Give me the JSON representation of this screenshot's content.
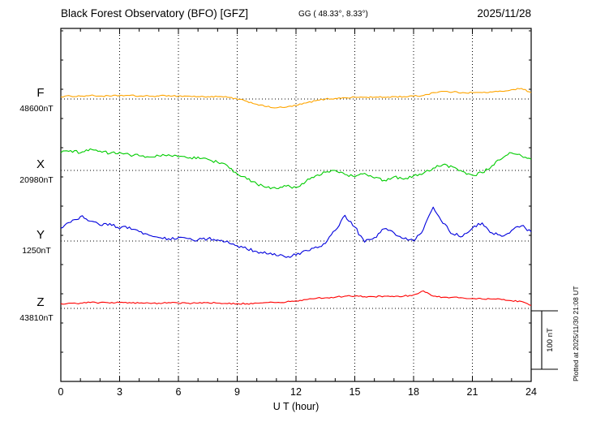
{
  "header": {
    "title": "Black Forest Observatory (BFO)  [GFZ]",
    "coords": "GG ( 48.33°,   8.33°)",
    "date": "2025/11/28"
  },
  "axes": {
    "xlabel": "U T (hour)"
  },
  "scale_bar": {
    "label": "100 nT",
    "span_nT": 100
  },
  "plotted_at": "Plotted at 2025/11/30 21:08 UT",
  "chart_data": {
    "type": "line",
    "title": "Black Forest Observatory (BFO) [GFZ] magnetogram, 2025/11/28",
    "xlabel": "U T (hour)",
    "x_range": [
      0,
      24
    ],
    "x_step_hours": 0.5,
    "x_ticks_labeled": [
      0,
      3,
      6,
      9,
      12,
      15,
      18,
      21,
      24
    ],
    "grid": {
      "vertical_dotted_every_hours": 3,
      "horizontal_dotted": "one dotted baseline per channel at its reference value"
    },
    "legend_position": "left-of-plot channel labels",
    "scale_nT_per_div": 100,
    "series": [
      {
        "name": "F",
        "color": "#ffa500",
        "baseline_nT": 48600,
        "baseline_label": "48600nT",
        "noise_nT": 1.2,
        "delta_nT": [
          4,
          5,
          5,
          6,
          5,
          5,
          6,
          6,
          5,
          5,
          5,
          6,
          5,
          5,
          4,
          4,
          4,
          3,
          0,
          -4,
          -9,
          -13,
          -15,
          -14,
          -11,
          -7,
          -3,
          0,
          1,
          2,
          3,
          3,
          3,
          3,
          4,
          4,
          5,
          6,
          11,
          13,
          12,
          11,
          11,
          11,
          12,
          13,
          16,
          18,
          11
        ]
      },
      {
        "name": "X",
        "color": "#00cc00",
        "baseline_nT": 20980,
        "baseline_label": "20980nT",
        "noise_nT": 2.6,
        "delta_nT": [
          30,
          34,
          30,
          37,
          33,
          29,
          31,
          27,
          25,
          23,
          25,
          27,
          23,
          21,
          23,
          19,
          14,
          8,
          -6,
          -15,
          -23,
          -29,
          -31,
          -27,
          -29,
          -19,
          -9,
          -3,
          0,
          -7,
          -11,
          -5,
          -13,
          -17,
          -11,
          -15,
          -9,
          -5,
          4,
          10,
          6,
          -2,
          -8,
          -4,
          8,
          20,
          30,
          25,
          19
        ]
      },
      {
        "name": "Y",
        "color": "#0000dd",
        "baseline_nT": 1250,
        "baseline_label": "1250nT",
        "noise_nT": 3.0,
        "delta_nT": [
          22,
          32,
          42,
          34,
          27,
          30,
          21,
          24,
          16,
          10,
          6,
          4,
          6,
          4,
          2,
          4,
          2,
          0,
          -8,
          -14,
          -18,
          -22,
          -25,
          -28,
          -24,
          -16,
          -10,
          -4,
          18,
          44,
          24,
          -2,
          6,
          21,
          14,
          4,
          0,
          20,
          58,
          30,
          12,
          8,
          22,
          31,
          14,
          8,
          18,
          26,
          16
        ]
      },
      {
        "name": "Z",
        "color": "#ff0000",
        "baseline_nT": 43810,
        "baseline_label": "43810nT",
        "noise_nT": 1.2,
        "delta_nT": [
          8,
          9,
          9,
          10,
          10,
          9,
          10,
          10,
          9,
          9,
          9,
          10,
          9,
          9,
          9,
          10,
          9,
          8,
          8,
          8,
          9,
          10,
          10,
          11,
          13,
          15,
          17,
          18,
          19,
          21,
          21,
          20,
          20,
          21,
          20,
          21,
          23,
          30,
          21,
          19,
          19,
          18,
          17,
          16,
          16,
          15,
          13,
          12,
          5
        ]
      }
    ]
  }
}
